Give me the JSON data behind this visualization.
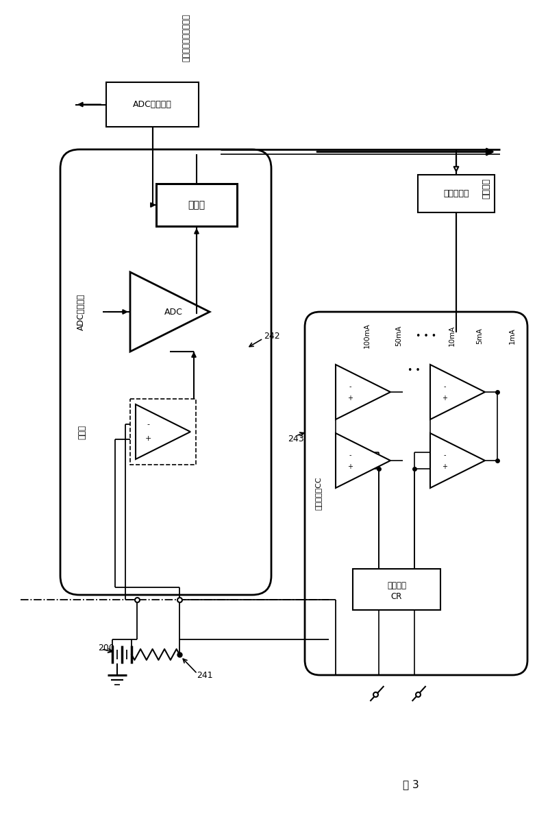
{
  "bg_color": "#ffffff",
  "fig_width": 8.0,
  "fig_height": 11.95,
  "title": "图 3",
  "adc_controller": "ADC控制逻辑",
  "register": "寄存器",
  "adc_stop": "ADC停止控制",
  "amplifier": "放大器",
  "data_bus": "数据总线",
  "compare_register": "比较寄存器",
  "current_comparator": "电流比较器CC",
  "current_ref_line1": "电流基渔",
  "current_ref_line2": "CR",
  "label_200": "200",
  "label_241": "241",
  "label_242": "242",
  "label_243": "243",
  "current_100mA": "100mA",
  "current_50mA": "50mA",
  "current_10mA": "10mA",
  "current_5mA": "5mA",
  "current_1mA": "1mA",
  "adc_convert_done": "电流模数转换完成标志"
}
